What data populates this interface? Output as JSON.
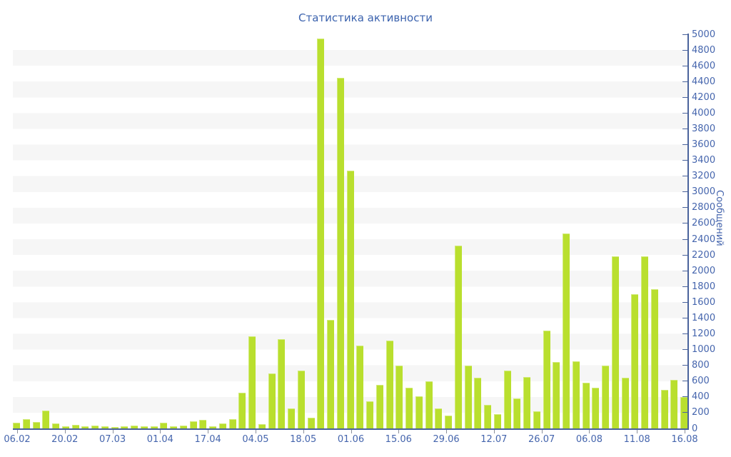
{
  "title": "Статистика активности",
  "y_axis": {
    "title": "Сообщений",
    "min": 0,
    "max": 5000,
    "step": 200,
    "tick_labels": [
      "0",
      "200",
      "400",
      "600",
      "800",
      "1000",
      "1200",
      "1400",
      "1600",
      "1800",
      "2000",
      "2200",
      "2400",
      "2600",
      "2800",
      "3000",
      "3200",
      "3400",
      "3600",
      "3800",
      "4000",
      "4200",
      "4400",
      "4600",
      "4800",
      "5000"
    ]
  },
  "x_axis": {
    "tick_labels": [
      "06.02",
      "20.02",
      "07.03",
      "01.04",
      "17.04",
      "04.05",
      "18.05",
      "01.06",
      "15.06",
      "29.06",
      "12.07",
      "26.07",
      "06.08",
      "11.08",
      "16.08"
    ]
  },
  "chart_data": {
    "type": "bar",
    "title": "Статистика активности",
    "xlabel": "",
    "ylabel": "Сообщений",
    "ylim": [
      0,
      5000
    ],
    "y_tick_step": 200,
    "grid": "horizontal-stripes-200",
    "legend": "none",
    "bar_color": "#b9df2e",
    "x_tick_labels": [
      "06.02",
      "20.02",
      "07.03",
      "01.04",
      "17.04",
      "04.05",
      "18.05",
      "01.06",
      "15.06",
      "29.06",
      "12.07",
      "26.07",
      "06.08",
      "11.08",
      "16.08"
    ],
    "values": [
      75,
      120,
      80,
      230,
      65,
      30,
      45,
      25,
      35,
      25,
      20,
      30,
      40,
      30,
      25,
      70,
      25,
      40,
      95,
      105,
      30,
      60,
      120,
      455,
      1170,
      55,
      700,
      1130,
      250,
      730,
      135,
      4950,
      1380,
      4450,
      3270,
      1050,
      340,
      550,
      1110,
      800,
      520,
      410,
      600,
      250,
      160,
      2320,
      795,
      645,
      300,
      180,
      735,
      380,
      650,
      220,
      1240,
      840,
      2470,
      855,
      580,
      520,
      795,
      2180,
      645,
      1700,
      2180,
      1765,
      485,
      620,
      400
    ]
  },
  "colors": {
    "bar": "#b9df2e",
    "title_text": "#3c63ae",
    "axis_text": "#4565ad",
    "axis_line": "#4a639c",
    "stripe": "#f6f6f6",
    "background": "#ffffff"
  }
}
